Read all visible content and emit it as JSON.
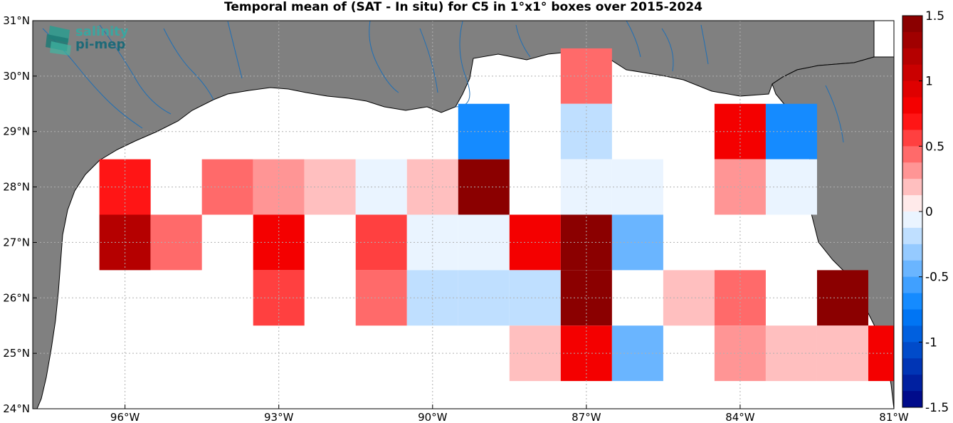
{
  "title": "Temporal mean of (SAT - In situ) for C5 in 1°x1° boxes over 2015-2024",
  "logo": {
    "line1": "salinity",
    "line2": "pi-mep"
  },
  "axes": {
    "x_ticks": [
      {
        "lon": -96,
        "label": "96°W"
      },
      {
        "lon": -93,
        "label": "93°W"
      },
      {
        "lon": -90,
        "label": "90°W"
      },
      {
        "lon": -87,
        "label": "87°W"
      },
      {
        "lon": -84,
        "label": "84°W"
      },
      {
        "lon": -81,
        "label": "81°W"
      }
    ],
    "y_ticks": [
      {
        "lat": 31,
        "label": "31°N"
      },
      {
        "lat": 30,
        "label": "30°N"
      },
      {
        "lat": 29,
        "label": "29°N"
      },
      {
        "lat": 28,
        "label": "28°N"
      },
      {
        "lat": 27,
        "label": "27°N"
      },
      {
        "lat": 26,
        "label": "26°N"
      },
      {
        "lat": 25,
        "label": "25°N"
      },
      {
        "lat": 24,
        "label": "24°N"
      }
    ],
    "lon_range": [
      -97.8,
      -81
    ],
    "lat_range": [
      24,
      31
    ]
  },
  "colorbar": {
    "min": -1.5,
    "max": 1.5,
    "levels": 24,
    "ticks": [
      {
        "v": 1.5,
        "label": "1.5"
      },
      {
        "v": 1,
        "label": "1"
      },
      {
        "v": 0.5,
        "label": "0.5"
      },
      {
        "v": 0,
        "label": "0"
      },
      {
        "v": -0.5,
        "label": "-0.5"
      },
      {
        "v": -1,
        "label": "-1"
      },
      {
        "v": -1.5,
        "label": "-1.5"
      }
    ]
  },
  "colors": {
    "land": "#808080",
    "ocean": "#ffffff",
    "river": "#1f6fb5",
    "grid": "#b0b0b0"
  },
  "chart_data": {
    "type": "heatmap",
    "title": "Temporal mean of (SAT - In situ) for C5 in 1°x1° boxes over 2015-2024",
    "units": "colorbar -1.5 to 1.5",
    "cells": [
      {
        "lon": -96,
        "lat": 28,
        "v": 0.7
      },
      {
        "lon": -94,
        "lat": 28,
        "v": 0.4
      },
      {
        "lon": -93,
        "lat": 28,
        "v": 0.3
      },
      {
        "lon": -92,
        "lat": 28,
        "v": 0.15
      },
      {
        "lon": -91,
        "lat": 28,
        "v": -0.1
      },
      {
        "lon": -90,
        "lat": 28,
        "v": 0.15
      },
      {
        "lon": -89,
        "lat": 28,
        "v": 1.5
      },
      {
        "lon": -89,
        "lat": 29,
        "v": -0.7
      },
      {
        "lon": -87,
        "lat": 30,
        "v": 0.4
      },
      {
        "lon": -87,
        "lat": 29,
        "v": -0.25
      },
      {
        "lon": -87,
        "lat": 28,
        "v": -0.1
      },
      {
        "lon": -86,
        "lat": 28,
        "v": -0.1
      },
      {
        "lon": -84,
        "lat": 29,
        "v": 0.75
      },
      {
        "lon": -83,
        "lat": 29,
        "v": -0.7
      },
      {
        "lon": -84,
        "lat": 28,
        "v": 0.3
      },
      {
        "lon": -83,
        "lat": 28,
        "v": -0.1
      },
      {
        "lon": -96,
        "lat": 27,
        "v": 1.2
      },
      {
        "lon": -95,
        "lat": 27,
        "v": 0.4
      },
      {
        "lon": -93,
        "lat": 27,
        "v": 0.75
      },
      {
        "lon": -91,
        "lat": 27,
        "v": 0.6
      },
      {
        "lon": -90,
        "lat": 27,
        "v": -0.1
      },
      {
        "lon": -89,
        "lat": 27,
        "v": -0.1
      },
      {
        "lon": -88,
        "lat": 27,
        "v": 0.75
      },
      {
        "lon": -87,
        "lat": 27,
        "v": 1.5
      },
      {
        "lon": -86,
        "lat": 27,
        "v": -0.4
      },
      {
        "lon": -93,
        "lat": 26,
        "v": 0.6
      },
      {
        "lon": -91,
        "lat": 26,
        "v": 0.4
      },
      {
        "lon": -90,
        "lat": 26,
        "v": -0.2
      },
      {
        "lon": -89,
        "lat": 26,
        "v": -0.2
      },
      {
        "lon": -88,
        "lat": 26,
        "v": -0.2
      },
      {
        "lon": -87,
        "lat": 26,
        "v": 1.5
      },
      {
        "lon": -85,
        "lat": 26,
        "v": 0.15
      },
      {
        "lon": -84,
        "lat": 26,
        "v": 0.45
      },
      {
        "lon": -82,
        "lat": 26,
        "v": 1.4
      },
      {
        "lon": -88,
        "lat": 25,
        "v": 0.15
      },
      {
        "lon": -87,
        "lat": 25,
        "v": 0.8
      },
      {
        "lon": -86,
        "lat": 25,
        "v": -0.4
      },
      {
        "lon": -84,
        "lat": 25,
        "v": 0.3
      },
      {
        "lon": -83,
        "lat": 25,
        "v": 0.15
      },
      {
        "lon": -82,
        "lat": 25,
        "v": 0.15
      },
      {
        "lon": -81.25,
        "lat": 25,
        "v": 0.8
      }
    ]
  }
}
